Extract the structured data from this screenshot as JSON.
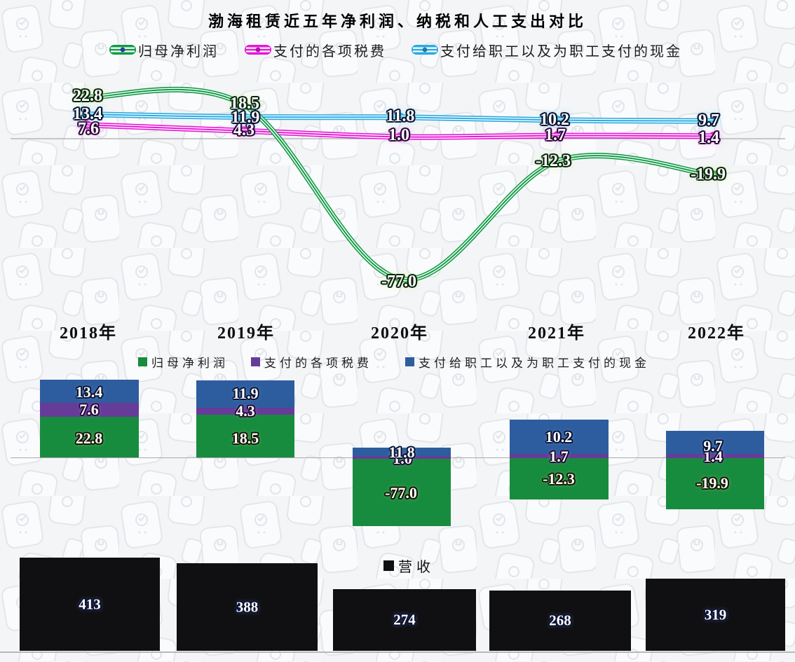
{
  "title": "渤海租赁近五年净利润、纳税和人工支出对比",
  "categories": [
    "2018年",
    "2019年",
    "2020年",
    "2021年",
    "2022年"
  ],
  "colors": {
    "line_green": "#119b46",
    "line_magenta": "#e816d8",
    "line_cyan": "#29aae1",
    "bar_green": "#188c3e",
    "bar_purple": "#663c99",
    "bar_blue": "#2d5d9e",
    "bar_black": "#101013",
    "axis_line": "#ababab"
  },
  "chart_data": [
    {
      "type": "line",
      "title": "渤海租赁近五年净利润、纳税和人工支出对比",
      "categories": [
        "2018年",
        "2019年",
        "2020年",
        "2021年",
        "2022年"
      ],
      "series": [
        {
          "name": "归母净利润",
          "values": [
            22.8,
            18.5,
            -77.0,
            -12.3,
            -19.9
          ],
          "color": "#119b46"
        },
        {
          "name": "支付的各项税费",
          "values": [
            7.6,
            4.3,
            1.0,
            1.7,
            1.4
          ],
          "color": "#e816d8"
        },
        {
          "name": "支付给职工以及为职工支付的现金",
          "values": [
            13.4,
            11.9,
            11.8,
            10.2,
            9.7
          ],
          "color": "#29aae1"
        }
      ],
      "legend_position": "top",
      "grid": false,
      "axis": "zero-baseline-only",
      "smoothed": true,
      "data_labels": true
    },
    {
      "type": "bar",
      "stacked": true,
      "categories": [
        "2018年",
        "2019年",
        "2020年",
        "2021年",
        "2022年"
      ],
      "series": [
        {
          "name": "归母净利润",
          "values": [
            22.8,
            18.5,
            -77.0,
            -12.3,
            -19.9
          ],
          "color": "#188c3e"
        },
        {
          "name": "支付的各项税费",
          "values": [
            7.6,
            4.3,
            1.0,
            1.7,
            1.4
          ],
          "color": "#663c99"
        },
        {
          "name": "支付给职工以及为职工支付的现金",
          "values": [
            13.4,
            11.9,
            11.8,
            10.2,
            9.7
          ],
          "color": "#2d5d9e"
        }
      ],
      "legend_position": "top",
      "grid": false,
      "axis": "zero-baseline-only",
      "data_labels": true
    },
    {
      "type": "bar",
      "categories": [
        "2018年",
        "2019年",
        "2020年",
        "2021年",
        "2022年"
      ],
      "series": [
        {
          "name": "营收",
          "values": [
            413,
            388,
            274,
            268,
            319
          ],
          "color": "#101013"
        }
      ],
      "legend_position": "top",
      "grid": false,
      "data_labels": true
    }
  ]
}
